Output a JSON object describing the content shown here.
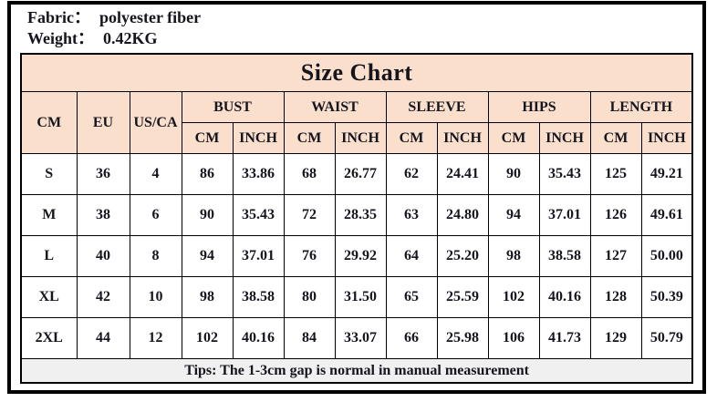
{
  "meta": {
    "fabric_label": "Fabric：",
    "fabric_value": "polyester fiber",
    "weight_label": "Weight：",
    "weight_value": "0.42KG"
  },
  "size_table": {
    "title": "Size Chart",
    "base_headers": [
      "CM",
      "EU",
      "US/CA"
    ],
    "measure_groups": [
      "BUST",
      "WAIST",
      "SLEEVE",
      "HIPS",
      "LENGTH"
    ],
    "unit_headers": [
      "CM",
      "INCH"
    ],
    "rows": [
      {
        "size": "S",
        "eu": "36",
        "us_ca": "4",
        "values": [
          "86",
          "33.86",
          "68",
          "26.77",
          "62",
          "24.41",
          "90",
          "35.43",
          "125",
          "49.21"
        ]
      },
      {
        "size": "M",
        "eu": "38",
        "us_ca": "6",
        "values": [
          "90",
          "35.43",
          "72",
          "28.35",
          "63",
          "24.80",
          "94",
          "37.01",
          "126",
          "49.61"
        ]
      },
      {
        "size": "L",
        "eu": "40",
        "us_ca": "8",
        "values": [
          "94",
          "37.01",
          "76",
          "29.92",
          "64",
          "25.20",
          "98",
          "38.58",
          "127",
          "50.00"
        ]
      },
      {
        "size": "XL",
        "eu": "42",
        "us_ca": "10",
        "values": [
          "98",
          "38.58",
          "80",
          "31.50",
          "65",
          "25.59",
          "102",
          "40.16",
          "128",
          "50.39"
        ]
      },
      {
        "size": "2XL",
        "eu": "44",
        "us_ca": "12",
        "values": [
          "102",
          "40.16",
          "84",
          "33.07",
          "66",
          "25.98",
          "106",
          "41.73",
          "129",
          "50.79"
        ]
      }
    ],
    "tips": "Tips: The 1-3cm gap is normal in manual measurement"
  },
  "colors": {
    "header_bg": "#fbdfcd",
    "tips_bg": "#f0f0f0",
    "border": "#000000",
    "text": "#15151e"
  }
}
